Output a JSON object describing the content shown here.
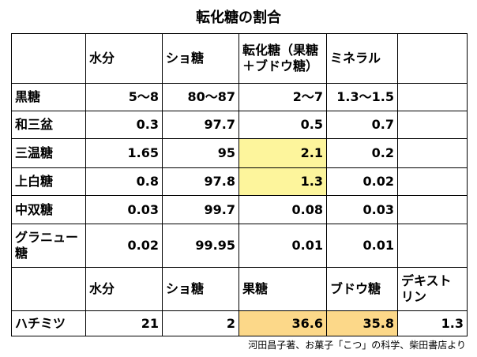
{
  "title": "転化糖の割合",
  "table": {
    "header": [
      "水分",
      "ショ糖",
      "転化糖（果糖＋ブドウ糖）",
      "ミネラル"
    ],
    "rows": [
      [
        "黒糖",
        "5〜8",
        "80〜87",
        "2〜7",
        "1.3〜1.5"
      ],
      [
        "和三盆",
        "0.3",
        "97.7",
        "0.5",
        "0.7"
      ],
      [
        "三温糖",
        "1.65",
        "95",
        "2.1",
        "0.2"
      ],
      [
        "上白糖",
        "0.8",
        "97.8",
        "1.3",
        "0.02"
      ],
      [
        "中双糖",
        "0.03",
        "99.7",
        "0.08",
        "0.03"
      ],
      [
        "グラニュー糖",
        "0.02",
        "99.95",
        "0.01",
        "0.01"
      ]
    ]
  },
  "honey_table": {
    "header": [
      "水分",
      "ショ糖",
      "果糖",
      "ブドウ糖",
      "デキストリン"
    ],
    "rows": [
      [
        "ハチミツ",
        "21",
        "2",
        "36.6",
        "35.8",
        "1.3"
      ]
    ]
  },
  "source": "河田昌子著、お菓子「こつ」の科学、柴田書店より"
}
